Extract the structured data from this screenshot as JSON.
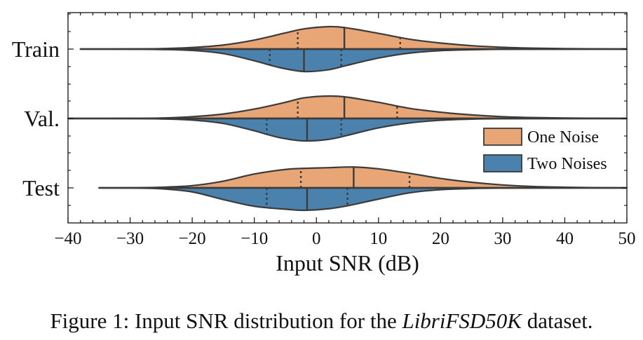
{
  "chart_data": {
    "type": "violin",
    "subtype": "split",
    "orientation": "horizontal",
    "xlabel": "Input SNR (dB)",
    "ylabel": "",
    "xlim": [
      -40,
      50
    ],
    "xticks": [
      -40,
      -30,
      -20,
      -10,
      0,
      10,
      20,
      30,
      40,
      50
    ],
    "xtick_labels": [
      "−40",
      "−30",
      "−20",
      "−10",
      "0",
      "10",
      "20",
      "30",
      "40",
      "50"
    ],
    "categories": [
      "Train",
      "Val.",
      "Test"
    ],
    "legend": {
      "position": "right",
      "entries": [
        {
          "label": "One Noise",
          "color": "#e8a575"
        },
        {
          "label": "Two Noises",
          "color": "#4b82ad"
        }
      ]
    },
    "grid": false,
    "series": [
      {
        "name": "One Noise",
        "color": "#e8a575",
        "side": "upper",
        "violins": [
          {
            "category": "Train",
            "range": [
              -38,
              50
            ],
            "quartiles": [
              -3,
              4.5,
              13.5
            ],
            "density": [
              [
                -38,
                0
              ],
              [
                -30,
                0.005
              ],
              [
                -25,
                0.02
              ],
              [
                -20,
                0.07
              ],
              [
                -15,
                0.18
              ],
              [
                -10,
                0.4
              ],
              [
                -5,
                0.72
              ],
              [
                -2,
                0.9
              ],
              [
                2,
                1.0
              ],
              [
                5,
                0.94
              ],
              [
                10,
                0.7
              ],
              [
                15,
                0.44
              ],
              [
                20,
                0.27
              ],
              [
                25,
                0.15
              ],
              [
                30,
                0.08
              ],
              [
                35,
                0.04
              ],
              [
                40,
                0.02
              ],
              [
                45,
                0.008
              ],
              [
                50,
                0
              ]
            ]
          },
          {
            "category": "Val.",
            "range": [
              -40,
              50
            ],
            "quartiles": [
              -3,
              4.5,
              13
            ],
            "density": [
              [
                -40,
                0
              ],
              [
                -30,
                0.005
              ],
              [
                -25,
                0.02
              ],
              [
                -20,
                0.08
              ],
              [
                -15,
                0.2
              ],
              [
                -10,
                0.42
              ],
              [
                -5,
                0.72
              ],
              [
                -2,
                0.92
              ],
              [
                2,
                1.0
              ],
              [
                5,
                0.95
              ],
              [
                10,
                0.72
              ],
              [
                15,
                0.45
              ],
              [
                20,
                0.28
              ],
              [
                25,
                0.16
              ],
              [
                30,
                0.08
              ],
              [
                35,
                0.04
              ],
              [
                40,
                0.02
              ],
              [
                45,
                0.008
              ],
              [
                50,
                0
              ]
            ]
          },
          {
            "category": "Test",
            "range": [
              -35,
              50
            ],
            "quartiles": [
              -2.5,
              6,
              15
            ],
            "density": [
              [
                -35,
                0
              ],
              [
                -30,
                0.005
              ],
              [
                -25,
                0.03
              ],
              [
                -20,
                0.1
              ],
              [
                -15,
                0.3
              ],
              [
                -10,
                0.62
              ],
              [
                -5,
                0.82
              ],
              [
                -2,
                0.87
              ],
              [
                2,
                0.9
              ],
              [
                6,
                0.93
              ],
              [
                10,
                0.85
              ],
              [
                15,
                0.65
              ],
              [
                20,
                0.42
              ],
              [
                25,
                0.25
              ],
              [
                30,
                0.13
              ],
              [
                35,
                0.06
              ],
              [
                40,
                0.03
              ],
              [
                45,
                0.01
              ],
              [
                50,
                0
              ]
            ]
          }
        ]
      },
      {
        "name": "Two Noises",
        "color": "#4b82ad",
        "side": "lower",
        "violins": [
          {
            "category": "Train",
            "range": [
              -38,
              50
            ],
            "quartiles": [
              -7.5,
              -2,
              4
            ],
            "density": [
              [
                -38,
                0
              ],
              [
                -30,
                0.005
              ],
              [
                -25,
                0.02
              ],
              [
                -20,
                0.06
              ],
              [
                -15,
                0.2
              ],
              [
                -10,
                0.52
              ],
              [
                -6,
                0.82
              ],
              [
                -2,
                1.0
              ],
              [
                2,
                0.92
              ],
              [
                5,
                0.72
              ],
              [
                10,
                0.4
              ],
              [
                15,
                0.18
              ],
              [
                20,
                0.07
              ],
              [
                25,
                0.03
              ],
              [
                30,
                0.01
              ],
              [
                40,
                0.003
              ],
              [
                50,
                0
              ]
            ]
          },
          {
            "category": "Val.",
            "range": [
              -40,
              50
            ],
            "quartiles": [
              -8,
              -1.5,
              4
            ],
            "density": [
              [
                -40,
                0
              ],
              [
                -30,
                0.005
              ],
              [
                -25,
                0.02
              ],
              [
                -20,
                0.07
              ],
              [
                -15,
                0.22
              ],
              [
                -10,
                0.55
              ],
              [
                -6,
                0.85
              ],
              [
                -2,
                1.0
              ],
              [
                2,
                0.93
              ],
              [
                5,
                0.75
              ],
              [
                10,
                0.42
              ],
              [
                15,
                0.2
              ],
              [
                20,
                0.08
              ],
              [
                25,
                0.03
              ],
              [
                30,
                0.01
              ],
              [
                40,
                0.003
              ],
              [
                50,
                0
              ]
            ]
          },
          {
            "category": "Test",
            "range": [
              -35,
              50
            ],
            "quartiles": [
              -8,
              -1.5,
              5
            ],
            "density": [
              [
                -35,
                0
              ],
              [
                -30,
                0.005
              ],
              [
                -25,
                0.04
              ],
              [
                -20,
                0.18
              ],
              [
                -15,
                0.52
              ],
              [
                -10,
                0.82
              ],
              [
                -5,
                0.95
              ],
              [
                -2,
                1.0
              ],
              [
                2,
                0.93
              ],
              [
                5,
                0.8
              ],
              [
                10,
                0.5
              ],
              [
                15,
                0.22
              ],
              [
                20,
                0.08
              ],
              [
                25,
                0.03
              ],
              [
                30,
                0.01
              ],
              [
                40,
                0.003
              ],
              [
                50,
                0
              ]
            ]
          }
        ]
      }
    ]
  },
  "caption": {
    "prefix": "Figure 1: Input SNR distribution for the ",
    "italic": "LibriFSD50K",
    "suffix": " dataset."
  }
}
